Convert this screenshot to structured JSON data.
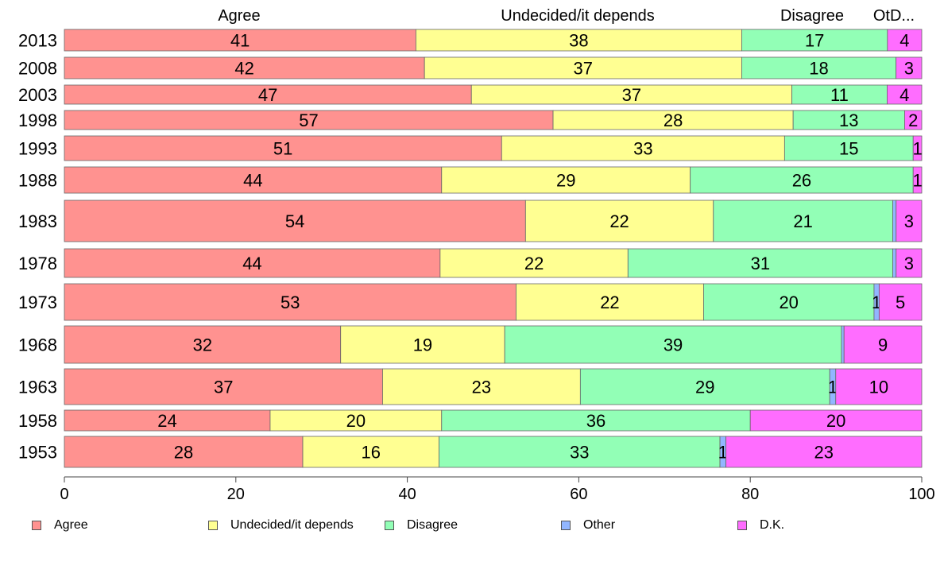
{
  "chart_data": {
    "type": "bar",
    "orientation": "horizontal",
    "stacked": true,
    "categories": [
      "2013",
      "2008",
      "2003",
      "1998",
      "1993",
      "1988",
      "1983",
      "1978",
      "1973",
      "1968",
      "1963",
      "1958",
      "1953"
    ],
    "series": [
      {
        "name": "Agree",
        "color": "#ff9290",
        "values": [
          41,
          42,
          47,
          57,
          51,
          44,
          54,
          44,
          53,
          32,
          37,
          24,
          28
        ]
      },
      {
        "name": "Undecided/it depends",
        "color": "#ffff92",
        "values": [
          38,
          37,
          37,
          28,
          33,
          29,
          22,
          22,
          22,
          19,
          23,
          20,
          16
        ]
      },
      {
        "name": "Disagree",
        "color": "#92ffb6",
        "values": [
          17,
          18,
          11,
          13,
          15,
          26,
          21,
          31,
          20,
          39,
          29,
          36,
          33
        ]
      },
      {
        "name": "Other",
        "color": "#92b6ff",
        "values": [
          0,
          0,
          0,
          0,
          0,
          0,
          0.4,
          0.4,
          0.6,
          0.3,
          0.7,
          0,
          0.7
        ]
      },
      {
        "name": "D.K.",
        "color": "#ff6dff",
        "values": [
          4,
          3,
          4,
          2,
          1,
          1,
          3,
          3,
          5,
          9,
          10,
          20,
          23
        ]
      }
    ],
    "data_labels": [
      [
        "41",
        "38",
        "17",
        "",
        "4"
      ],
      [
        "42",
        "37",
        "18",
        "",
        "3"
      ],
      [
        "47",
        "37",
        "11",
        "",
        "4"
      ],
      [
        "57",
        "28",
        "13",
        "",
        "2"
      ],
      [
        "51",
        "33",
        "15",
        "",
        "1"
      ],
      [
        "44",
        "29",
        "26",
        "",
        "1"
      ],
      [
        "54",
        "22",
        "21",
        "",
        "3"
      ],
      [
        "44",
        "22",
        "31",
        "",
        "3"
      ],
      [
        "53",
        "22",
        "20",
        "1",
        "5"
      ],
      [
        "32",
        "19",
        "39",
        "",
        "9"
      ],
      [
        "37",
        "23",
        "29",
        "1",
        "10"
      ],
      [
        "24",
        "20",
        "36",
        "",
        "20"
      ],
      [
        "28",
        "16",
        "33",
        "1",
        "23"
      ]
    ],
    "top_labels": [
      "Agree",
      "Undecided/it depends",
      "Disagree",
      "OtD..."
    ],
    "xlim": [
      0,
      100
    ],
    "xticks": [
      0,
      20,
      40,
      60,
      80,
      100
    ],
    "grid": false,
    "legend_position": "bottom"
  }
}
